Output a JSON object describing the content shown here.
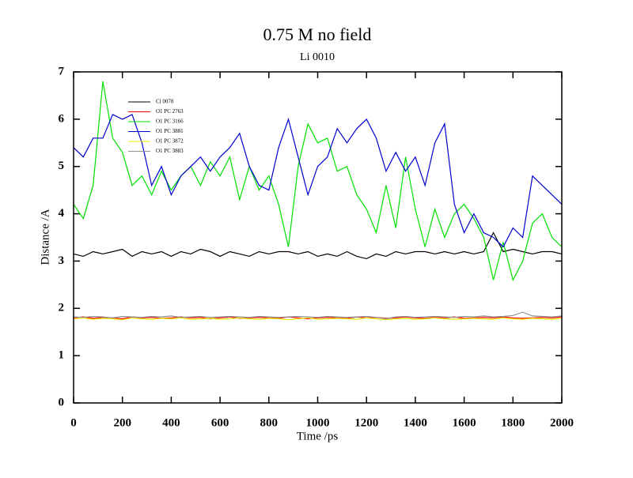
{
  "chart_data": {
    "type": "line",
    "title": "0.75 M no field",
    "subtitle": "Li 0010",
    "x_label": "Time /ps",
    "y_label": "Distance /A",
    "x": [
      0,
      40,
      80,
      120,
      160,
      200,
      240,
      280,
      320,
      360,
      400,
      440,
      480,
      520,
      560,
      600,
      640,
      680,
      720,
      760,
      800,
      840,
      880,
      920,
      960,
      1000,
      1040,
      1080,
      1120,
      1160,
      1200,
      1240,
      1280,
      1320,
      1360,
      1400,
      1440,
      1480,
      1520,
      1560,
      1600,
      1640,
      1680,
      1720,
      1760,
      1800,
      1840,
      1880,
      1920,
      1960,
      2000
    ],
    "xlim": [
      0,
      2000
    ],
    "xticks": [
      0,
      200,
      400,
      600,
      800,
      1000,
      1200,
      1400,
      1600,
      1800,
      2000
    ],
    "ylim": [
      0,
      7
    ],
    "yticks": [
      0,
      1,
      2,
      3,
      4,
      5,
      6,
      7
    ],
    "series": [
      {
        "name": "Cl 0078",
        "color": "#000000",
        "values": [
          3.15,
          3.1,
          3.2,
          3.15,
          3.2,
          3.25,
          3.1,
          3.2,
          3.15,
          3.2,
          3.1,
          3.2,
          3.15,
          3.25,
          3.2,
          3.1,
          3.2,
          3.15,
          3.1,
          3.2,
          3.15,
          3.2,
          3.2,
          3.15,
          3.2,
          3.1,
          3.15,
          3.1,
          3.2,
          3.1,
          3.05,
          3.15,
          3.1,
          3.2,
          3.15,
          3.2,
          3.2,
          3.15,
          3.2,
          3.15,
          3.2,
          3.15,
          3.2,
          3.6,
          3.2,
          3.25,
          3.2,
          3.15,
          3.2,
          3.2,
          3.15
        ]
      },
      {
        "name": "O1 PC 2763",
        "color": "#ff0000",
        "values": [
          1.8,
          1.82,
          1.79,
          1.81,
          1.8,
          1.78,
          1.82,
          1.8,
          1.81,
          1.79,
          1.8,
          1.82,
          1.8,
          1.81,
          1.78,
          1.8,
          1.82,
          1.79,
          1.8,
          1.81,
          1.8,
          1.79,
          1.82,
          1.8,
          1.78,
          1.8,
          1.81,
          1.8,
          1.79,
          1.82,
          1.8,
          1.81,
          1.79,
          1.8,
          1.82,
          1.8,
          1.79,
          1.81,
          1.8,
          1.82,
          1.79,
          1.8,
          1.81,
          1.8,
          1.82,
          1.8,
          1.79,
          1.8,
          1.81,
          1.8,
          1.82
        ]
      },
      {
        "name": "O1 PC 3166",
        "color": "#00e000",
        "values": [
          4.2,
          3.9,
          4.6,
          6.8,
          5.6,
          5.3,
          4.6,
          4.8,
          4.4,
          4.9,
          4.5,
          4.8,
          5.0,
          4.6,
          5.1,
          4.8,
          5.2,
          4.3,
          5.0,
          4.5,
          4.8,
          4.2,
          3.3,
          5.0,
          5.9,
          5.5,
          5.6,
          4.9,
          5.0,
          4.4,
          4.1,
          3.6,
          4.6,
          3.7,
          5.2,
          4.1,
          3.3,
          4.1,
          3.5,
          4.0,
          4.2,
          3.9,
          3.5,
          2.6,
          3.4,
          2.6,
          3.0,
          3.8,
          4.0,
          3.5,
          3.3
        ]
      },
      {
        "name": "O1 PC 3881",
        "color": "#0000d0",
        "values": [
          5.4,
          5.2,
          5.6,
          5.6,
          6.1,
          6.0,
          6.1,
          5.5,
          4.6,
          5.0,
          4.4,
          4.8,
          5.0,
          5.2,
          4.9,
          5.2,
          5.4,
          5.7,
          5.0,
          4.6,
          4.5,
          5.4,
          6.0,
          5.2,
          4.4,
          5.0,
          5.2,
          5.8,
          5.5,
          5.8,
          6.0,
          5.6,
          4.9,
          5.3,
          4.9,
          5.2,
          4.6,
          5.5,
          5.9,
          4.2,
          3.6,
          4.0,
          3.6,
          3.5,
          3.3,
          3.7,
          3.5,
          4.8,
          4.6,
          4.4,
          4.2
        ]
      },
      {
        "name": "O1 PC 3872",
        "color": "#e8e800",
        "values": [
          1.78,
          1.8,
          1.77,
          1.79,
          1.78,
          1.76,
          1.8,
          1.78,
          1.77,
          1.79,
          1.78,
          1.8,
          1.77,
          1.78,
          1.79,
          1.77,
          1.78,
          1.8,
          1.78,
          1.77,
          1.79,
          1.78,
          1.76,
          1.78,
          1.8,
          1.77,
          1.78,
          1.79,
          1.78,
          1.77,
          1.8,
          1.78,
          1.76,
          1.78,
          1.79,
          1.77,
          1.78,
          1.8,
          1.78,
          1.77,
          1.78,
          1.79,
          1.78,
          1.77,
          1.8,
          1.78,
          1.77,
          1.79,
          1.78,
          1.77,
          1.79
        ]
      },
      {
        "name": "O1 PC 3883",
        "color": "#909090",
        "values": [
          1.82,
          1.81,
          1.83,
          1.82,
          1.8,
          1.83,
          1.82,
          1.81,
          1.83,
          1.82,
          1.84,
          1.81,
          1.82,
          1.83,
          1.81,
          1.82,
          1.83,
          1.82,
          1.81,
          1.83,
          1.82,
          1.81,
          1.82,
          1.83,
          1.82,
          1.81,
          1.83,
          1.82,
          1.81,
          1.82,
          1.83,
          1.81,
          1.78,
          1.82,
          1.83,
          1.81,
          1.82,
          1.83,
          1.82,
          1.81,
          1.83,
          1.82,
          1.84,
          1.82,
          1.83,
          1.85,
          1.92,
          1.84,
          1.83,
          1.82,
          1.84
        ]
      }
    ]
  }
}
